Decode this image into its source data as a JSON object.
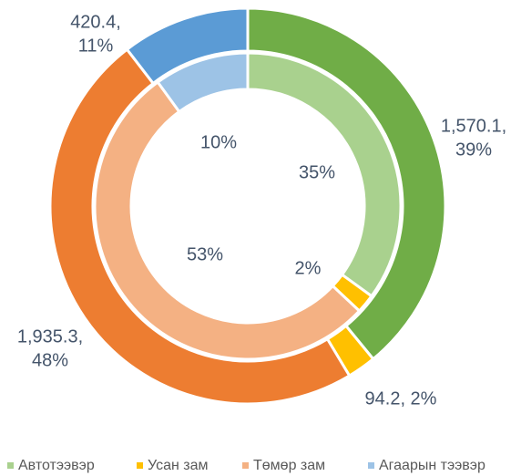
{
  "chart_data": {
    "type": "donut",
    "categories": [
      "Автотээвэр",
      "Усан зам",
      "Төмөр зам",
      "Агаарын тээвэр"
    ],
    "series": [
      {
        "colors": [
          "#70ad47",
          "#ffc000",
          "#ed7d31",
          "#5b9bd5"
        ],
        "values": [
          1570.1,
          94.2,
          1935.3,
          420.4
        ],
        "value_labels": [
          [
            "1,570.1,",
            "39%"
          ],
          [
            "94.2, 2%"
          ],
          [
            "1,935.3,",
            "48%"
          ],
          [
            "420.4,",
            "11%"
          ]
        ]
      },
      {
        "colors": [
          "#a9d18e",
          "#ffc000",
          "#f4b183",
          "#9dc3e6"
        ],
        "values": [
          35,
          2,
          53,
          10
        ],
        "value_labels": [
          [
            "35%"
          ],
          [
            "2%"
          ],
          [
            "53%"
          ],
          [
            "10%"
          ]
        ]
      }
    ],
    "legend": "bottom"
  }
}
